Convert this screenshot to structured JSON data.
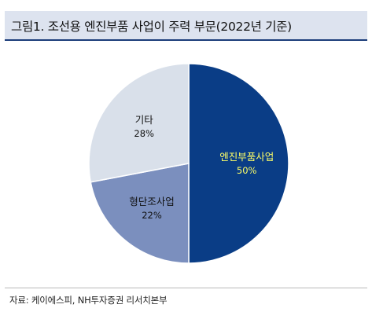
{
  "title": "그림1. 조선용 엔진부품 사업이 주력 부문(2022년 기준)",
  "source": "자료: 케이에스피, NH투자증권 리서치본부",
  "chart_data": {
    "type": "pie",
    "title": "그림1. 조선용 엔진부품 사업이 주력 부문(2022년 기준)",
    "unit": "%",
    "slices": [
      {
        "label": "엔진부품사업",
        "value": 50,
        "value_label": "50%",
        "color": "#0a3d86",
        "label_color": "#ffff66"
      },
      {
        "label": "형단조사업",
        "value": 22,
        "value_label": "22%",
        "color": "#7b8fbe",
        "label_color": "#111111"
      },
      {
        "label": "기타",
        "value": 28,
        "value_label": "28%",
        "color": "#d9e0ea",
        "label_color": "#111111"
      }
    ],
    "start_angle": "12 o'clock",
    "direction": "clockwise",
    "legend": "none"
  }
}
